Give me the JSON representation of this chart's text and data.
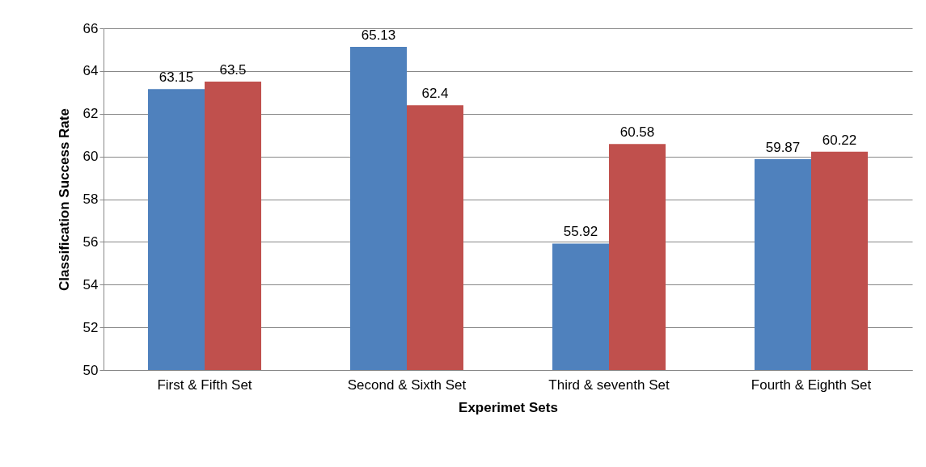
{
  "chart_data": {
    "type": "bar",
    "xlabel": "Experimet Sets",
    "ylabel": "Classification Success Rate",
    "categories": [
      "First & Fifth Set",
      "Second & Sixth Set",
      "Third & seventh Set",
      "Fourth & Eighth Set"
    ],
    "series": [
      {
        "color": "#4f81bd",
        "values": [
          63.15,
          65.13,
          55.92,
          59.87
        ]
      },
      {
        "color": "#c0504d",
        "values": [
          63.5,
          62.4,
          60.58,
          60.22
        ]
      }
    ],
    "ylim": [
      50,
      66
    ],
    "yticks": [
      50,
      52,
      54,
      56,
      58,
      60,
      62,
      64,
      66
    ],
    "grid": "y",
    "data_labels": true
  }
}
